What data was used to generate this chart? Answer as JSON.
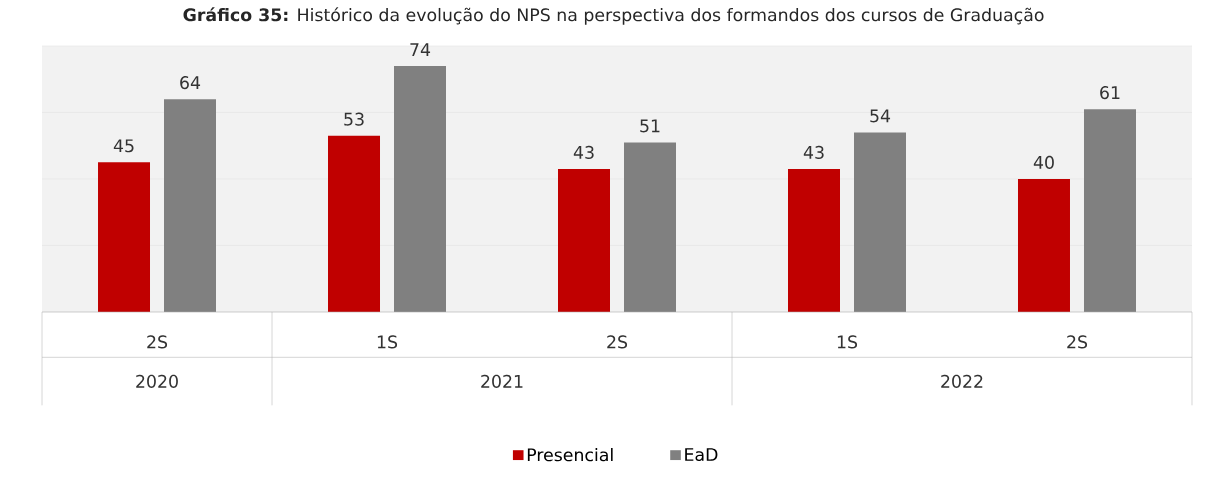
{
  "chart_data": {
    "type": "bar",
    "title": "**Gráfico 35:** Histórico da evolução do NPS na perspectiva dos formandos dos cursos de Graduação",
    "categories": [
      "2S",
      "1S",
      "2S",
      "1S",
      "2S"
    ],
    "annotations": [
      "2020",
      "2021",
      "2022"
    ],
    "series": [
      {
        "name": "Presencial",
        "color": "#c00000",
        "values": [
          45,
          53,
          43,
          43,
          40
        ]
      },
      {
        "name": "EaD",
        "color": "#808080",
        "values": [
          64,
          74,
          51,
          54,
          61
        ]
      }
    ],
    "ylim": [
      0,
      80
    ],
    "yticks": [
      {
        "value": 0,
        "label": null
      },
      {
        "value": 20,
        "label": null
      },
      {
        "value": 40,
        "label": null
      },
      {
        "value": 60,
        "label": null
      },
      {
        "value": 80,
        "label": null
      }
    ],
    "grid": "y",
    "data_labels": true,
    "legend": "bottom",
    "tick_labels": "x"
  }
}
